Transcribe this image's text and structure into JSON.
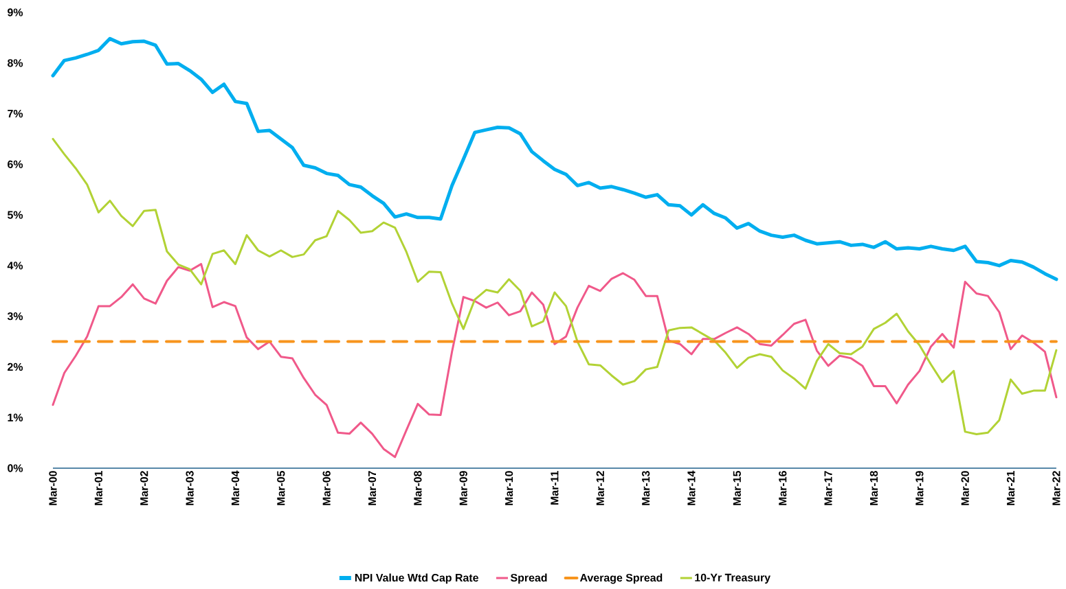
{
  "chart_data": {
    "type": "line",
    "categories": [
      "Mar-00",
      null,
      null,
      null,
      "Mar-01",
      null,
      null,
      null,
      "Mar-02",
      null,
      null,
      null,
      "Mar-03",
      null,
      null,
      null,
      "Mar-04",
      null,
      null,
      null,
      "Mar-05",
      null,
      null,
      null,
      "Mar-06",
      null,
      null,
      null,
      "Mar-07",
      null,
      null,
      null,
      "Mar-08",
      null,
      null,
      null,
      "Mar-09",
      null,
      null,
      null,
      "Mar-10",
      null,
      null,
      null,
      "Mar-11",
      null,
      null,
      null,
      "Mar-12",
      null,
      null,
      null,
      "Mar-13",
      null,
      null,
      null,
      "Mar-14",
      null,
      null,
      null,
      "Mar-15",
      null,
      null,
      null,
      "Mar-16",
      null,
      null,
      null,
      "Mar-17",
      null,
      null,
      null,
      "Mar-18",
      null,
      null,
      null,
      "Mar-19",
      null,
      null,
      null,
      "Mar-20",
      null,
      null,
      null,
      "Mar-21",
      null,
      null,
      null,
      "Mar-22"
    ],
    "series": [
      {
        "name": "NPI Value Wtd Cap Rate",
        "color": "#00aeef",
        "values": [
          7.75,
          8.05,
          8.1,
          8.17,
          8.25,
          8.48,
          8.38,
          8.42,
          8.43,
          8.35,
          7.98,
          7.99,
          7.85,
          7.68,
          7.42,
          7.58,
          7.24,
          7.2,
          6.65,
          6.67,
          6.5,
          6.33,
          5.98,
          5.93,
          5.82,
          5.78,
          5.6,
          5.55,
          5.38,
          5.23,
          4.96,
          5.02,
          4.95,
          4.95,
          4.92,
          5.58,
          6.1,
          6.63,
          6.68,
          6.73,
          6.72,
          6.6,
          6.25,
          6.07,
          5.9,
          5.8,
          5.58,
          5.64,
          5.53,
          5.56,
          5.5,
          5.43,
          5.35,
          5.4,
          5.2,
          5.18,
          5.0,
          5.2,
          5.03,
          4.94,
          4.74,
          4.83,
          4.68,
          4.6,
          4.56,
          4.6,
          4.5,
          4.43,
          4.45,
          4.47,
          4.4,
          4.42,
          4.36,
          4.47,
          4.33,
          4.35,
          4.33,
          4.38,
          4.33,
          4.3,
          4.38,
          4.08,
          4.06,
          4.0,
          4.1,
          4.07,
          3.97,
          3.84,
          3.73
        ]
      },
      {
        "name": "Spread",
        "color": "#f0598a",
        "values": [
          1.25,
          1.88,
          2.22,
          2.6,
          3.2,
          3.2,
          3.38,
          3.63,
          3.35,
          3.25,
          3.7,
          3.97,
          3.9,
          4.03,
          3.18,
          3.28,
          3.2,
          2.58,
          2.35,
          2.5,
          2.2,
          2.17,
          1.78,
          1.45,
          1.25,
          0.7,
          0.68,
          0.9,
          0.68,
          0.38,
          0.22,
          0.75,
          1.27,
          1.06,
          1.05,
          2.3,
          3.38,
          3.3,
          3.17,
          3.27,
          3.02,
          3.1,
          3.47,
          3.23,
          2.45,
          2.6,
          3.17,
          3.6,
          3.5,
          3.74,
          3.85,
          3.72,
          3.4,
          3.4,
          2.52,
          2.45,
          2.25,
          2.55,
          2.55,
          2.67,
          2.78,
          2.65,
          2.45,
          2.42,
          2.63,
          2.85,
          2.93,
          2.32,
          2.02,
          2.22,
          2.17,
          2.02,
          1.62,
          1.62,
          1.28,
          1.65,
          1.92,
          2.4,
          2.65,
          2.38,
          3.68,
          3.45,
          3.4,
          3.08,
          2.35,
          2.62,
          2.48,
          2.3,
          1.4
        ]
      },
      {
        "name": "10-Yr Treasury",
        "color": "#b2d235",
        "values": [
          6.5,
          6.2,
          5.92,
          5.6,
          5.05,
          5.28,
          4.98,
          4.78,
          5.08,
          5.1,
          4.28,
          4.02,
          3.93,
          3.63,
          4.23,
          4.3,
          4.03,
          4.6,
          4.3,
          4.18,
          4.3,
          4.17,
          4.22,
          4.5,
          4.58,
          5.08,
          4.9,
          4.65,
          4.68,
          4.85,
          4.75,
          4.27,
          3.68,
          3.88,
          3.87,
          3.25,
          2.75,
          3.33,
          3.52,
          3.47,
          3.73,
          3.5,
          2.8,
          2.9,
          3.47,
          3.2,
          2.5,
          2.05,
          2.03,
          1.83,
          1.65,
          1.72,
          1.95,
          2.0,
          2.72,
          2.77,
          2.78,
          2.65,
          2.52,
          2.28,
          1.98,
          2.18,
          2.25,
          2.2,
          1.93,
          1.77,
          1.57,
          2.12,
          2.45,
          2.27,
          2.25,
          2.4,
          2.75,
          2.87,
          3.05,
          2.7,
          2.43,
          2.05,
          1.7,
          1.92,
          0.72,
          0.67,
          0.7,
          0.95,
          1.75,
          1.47,
          1.53,
          1.53,
          2.33
        ]
      }
    ],
    "ref_lines": [
      {
        "axis": "y",
        "value": 2.5,
        "label": "Average Spread",
        "color": "#f7941d",
        "line_style": "dashed"
      }
    ],
    "ylim": [
      0,
      9
    ],
    "yticks": [
      {
        "value": 0,
        "label": "0%"
      },
      {
        "value": 1,
        "label": "1%"
      },
      {
        "value": 2,
        "label": "2%"
      },
      {
        "value": 3,
        "label": "3%"
      },
      {
        "value": 4,
        "label": "4%"
      },
      {
        "value": 5,
        "label": "5%"
      },
      {
        "value": 6,
        "label": "6%"
      },
      {
        "value": 7,
        "label": "7%"
      },
      {
        "value": 8,
        "label": "8%"
      },
      {
        "value": 9,
        "label": "9%"
      }
    ],
    "legend": "bottom",
    "grid": false,
    "marker": "none",
    "line_style": "solid"
  }
}
